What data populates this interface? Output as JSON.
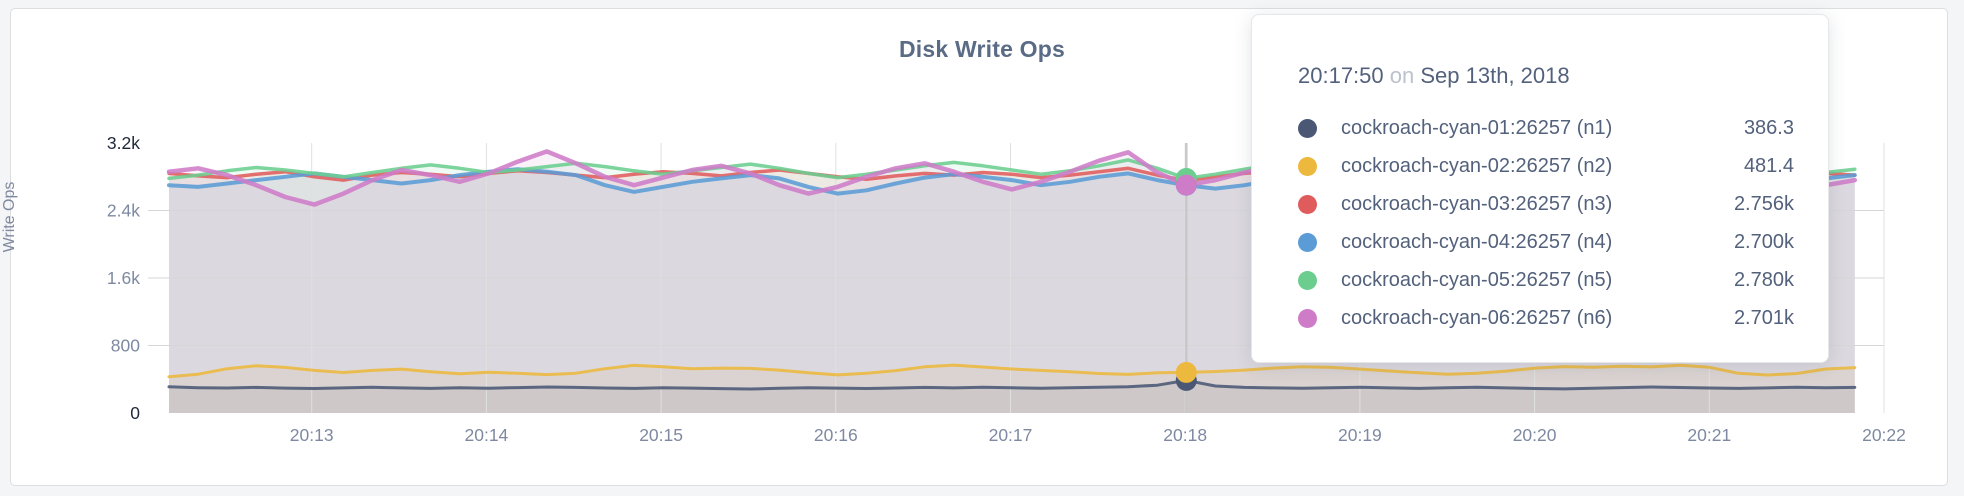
{
  "chart_data": {
    "type": "line",
    "title": "Disk Write Ops",
    "ylabel": "Write Ops",
    "ylim": [
      0,
      3200
    ],
    "grid": true,
    "x_window": {
      "start": "20:12:11",
      "end": "20:22:00"
    },
    "x_ticks": [
      "20:13",
      "20:14",
      "20:15",
      "20:16",
      "20:17",
      "20:18",
      "20:19",
      "20:20",
      "20:21",
      "20:22"
    ],
    "y_ticks": [
      {
        "label": "3.2k",
        "value": 3200,
        "emphasized": true
      },
      {
        "label": "2.4k",
        "value": 2400,
        "emphasized": false
      },
      {
        "label": "1.6k",
        "value": 1600,
        "emphasized": false
      },
      {
        "label": "800",
        "value": 800,
        "emphasized": false
      },
      {
        "label": "0",
        "value": 0,
        "emphasized": true
      }
    ],
    "hover_index": 35,
    "series": [
      {
        "name": "cockroach-cyan-01:26257 (n1)",
        "color": "#4a5875",
        "width": 3,
        "values": [
          310,
          300,
          296,
          303,
          295,
          290,
          298,
          305,
          297,
          292,
          299,
          294,
          301,
          308,
          303,
          296,
          291,
          299,
          295,
          289,
          285,
          293,
          300,
          295,
          290,
          296,
          303,
          298,
          305,
          299,
          293,
          300,
          306,
          312,
          330,
          386.3,
          320,
          303,
          297,
          293,
          299,
          306,
          298,
          292,
          299,
          305,
          298,
          290,
          286,
          294,
          301,
          308,
          302,
          296,
          291,
          298,
          305,
          299,
          303
        ]
      },
      {
        "name": "cockroach-cyan-02:26257 (n2)",
        "color": "#ecb83e",
        "width": 3,
        "values": [
          430,
          460,
          525,
          560,
          540,
          505,
          480,
          505,
          520,
          490,
          465,
          482,
          470,
          455,
          472,
          525,
          565,
          548,
          525,
          532,
          528,
          508,
          478,
          452,
          470,
          502,
          548,
          568,
          545,
          522,
          505,
          488,
          468,
          458,
          476,
          481.4,
          492,
          508,
          532,
          548,
          540,
          520,
          498,
          476,
          460,
          472,
          496,
          532,
          550,
          542,
          554,
          546,
          565,
          542,
          470,
          450,
          468,
          522,
          538
        ]
      },
      {
        "name": "cockroach-cyan-03:26257 (n3)",
        "color": "#e05c5c",
        "width": 3.5,
        "values": [
          2840,
          2810,
          2790,
          2830,
          2860,
          2800,
          2760,
          2820,
          2850,
          2830,
          2800,
          2840,
          2870,
          2850,
          2820,
          2790,
          2830,
          2860,
          2840,
          2810,
          2850,
          2880,
          2840,
          2800,
          2770,
          2810,
          2840,
          2820,
          2850,
          2830,
          2790,
          2820,
          2860,
          2900,
          2820,
          2756,
          2800,
          2840,
          2870,
          2840,
          2810,
          2840,
          2820,
          2790,
          2830,
          2860,
          2830,
          2800,
          2840,
          2870,
          2850,
          2820,
          2850,
          2830,
          2800,
          2830,
          2860,
          2840,
          2820
        ]
      },
      {
        "name": "cockroach-cyan-04:26257 (n4)",
        "color": "#5b9cd6",
        "width": 4,
        "values": [
          2700,
          2680,
          2720,
          2760,
          2800,
          2840,
          2800,
          2760,
          2720,
          2760,
          2820,
          2860,
          2890,
          2860,
          2820,
          2700,
          2620,
          2680,
          2740,
          2780,
          2820,
          2780,
          2680,
          2600,
          2640,
          2720,
          2790,
          2830,
          2800,
          2760,
          2700,
          2740,
          2800,
          2840,
          2760,
          2700,
          2660,
          2700,
          2760,
          2820,
          2860,
          2820,
          2760,
          2700,
          2740,
          2800,
          2850,
          2810,
          2750,
          2690,
          2730,
          2790,
          2840,
          2800,
          2740,
          2680,
          2720,
          2780,
          2820
        ]
      },
      {
        "name": "cockroach-cyan-05:26257 (n5)",
        "color": "#6bce8f",
        "width": 3.5,
        "values": [
          2780,
          2820,
          2870,
          2910,
          2880,
          2840,
          2800,
          2850,
          2900,
          2940,
          2900,
          2850,
          2880,
          2920,
          2960,
          2920,
          2870,
          2830,
          2870,
          2910,
          2950,
          2900,
          2840,
          2790,
          2830,
          2880,
          2930,
          2970,
          2930,
          2880,
          2830,
          2870,
          2930,
          3000,
          2900,
          2780,
          2830,
          2890,
          2950,
          3010,
          2960,
          2900,
          2850,
          2900,
          2950,
          2910,
          2860,
          2820,
          2870,
          2920,
          2960,
          2920,
          2870,
          2830,
          2880,
          2930,
          2890,
          2850,
          2890
        ]
      },
      {
        "name": "cockroach-cyan-06:26257 (n6)",
        "color": "#ce7cc8",
        "width": 4.5,
        "values": [
          2860,
          2900,
          2820,
          2700,
          2560,
          2470,
          2600,
          2760,
          2880,
          2820,
          2740,
          2840,
          2980,
          3100,
          2960,
          2800,
          2700,
          2790,
          2880,
          2930,
          2840,
          2700,
          2600,
          2680,
          2800,
          2900,
          2960,
          2860,
          2740,
          2650,
          2740,
          2860,
          2990,
          3090,
          2850,
          2701,
          2760,
          2850,
          2920,
          2850,
          2760,
          2700,
          2780,
          2870,
          2930,
          2860,
          2760,
          2680,
          2760,
          2860,
          2920,
          2840,
          2740,
          2820,
          2900,
          2830,
          2750,
          2700,
          2760
        ]
      }
    ]
  },
  "tooltip": {
    "time": "20:17:50",
    "on": "on",
    "date": "Sep 13th, 2018",
    "rows": [
      {
        "name": "cockroach-cyan-01:26257 (n1)",
        "value": "386.3",
        "color": "#4a5875"
      },
      {
        "name": "cockroach-cyan-02:26257 (n2)",
        "value": "481.4",
        "color": "#ecb83e"
      },
      {
        "name": "cockroach-cyan-03:26257 (n3)",
        "value": "2.756k",
        "color": "#e05c5c"
      },
      {
        "name": "cockroach-cyan-04:26257 (n4)",
        "value": "2.700k",
        "color": "#5b9cd6"
      },
      {
        "name": "cockroach-cyan-05:26257 (n5)",
        "value": "2.780k",
        "color": "#6bce8f"
      },
      {
        "name": "cockroach-cyan-06:26257 (n6)",
        "value": "2.701k",
        "color": "#ce7cc8"
      }
    ]
  },
  "style_colors": {
    "title": "#5a6b85",
    "axis_tick": "#7e89a1",
    "axis_tick_emphasized": "#22293a",
    "gridline_vertical": "#e0e0e0",
    "gridline_horizontal": "#d6d6d6",
    "hover_line": "#c8c8c8"
  }
}
